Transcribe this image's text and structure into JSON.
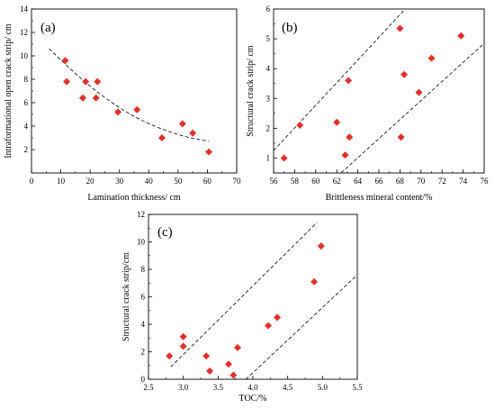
{
  "colors": {
    "marker": "#e0312b",
    "axis": "#000000",
    "trend": "#000000"
  },
  "chart_data": [
    {
      "panel": "(a)",
      "type": "scatter",
      "xlabel": "Lamination thickness/ cm",
      "ylabel": "Intraformational open crack  strip/ cm",
      "xlim": [
        0,
        70
      ],
      "ylim": [
        0,
        14
      ],
      "xticks": [
        0,
        10,
        20,
        30,
        40,
        50,
        60,
        70
      ],
      "yticks": [
        2,
        4,
        6,
        8,
        10,
        12,
        14
      ],
      "grid": false,
      "points": [
        {
          "x": 11.5,
          "y": 9.6
        },
        {
          "x": 12,
          "y": 7.8
        },
        {
          "x": 17.5,
          "y": 6.4
        },
        {
          "x": 18.5,
          "y": 7.8
        },
        {
          "x": 22,
          "y": 6.4
        },
        {
          "x": 22.5,
          "y": 7.8
        },
        {
          "x": 29.5,
          "y": 5.2
        },
        {
          "x": 36,
          "y": 5.4
        },
        {
          "x": 44.5,
          "y": 3.0
        },
        {
          "x": 51.5,
          "y": 4.2
        },
        {
          "x": 55,
          "y": 3.4
        },
        {
          "x": 60.5,
          "y": 1.8
        }
      ],
      "trend": {
        "kind": "quadratic",
        "points": [
          [
            6,
            10.6
          ],
          [
            20,
            7.3
          ],
          [
            35,
            4.7
          ],
          [
            50,
            3.2
          ],
          [
            60.5,
            2.7
          ]
        ]
      }
    },
    {
      "panel": "(b)",
      "type": "scatter",
      "xlabel": "Brittleness mineral content/%",
      "ylabel": "Structural crack strip/ cm",
      "xlim": [
        56,
        76
      ],
      "ylim": [
        0.5,
        6
      ],
      "xticks": [
        56,
        58,
        60,
        62,
        64,
        66,
        68,
        70,
        72,
        74,
        76
      ],
      "yticks": [
        1,
        2,
        3,
        4,
        5,
        6
      ],
      "grid": false,
      "points": [
        {
          "x": 57,
          "y": 1.0
        },
        {
          "x": 58.5,
          "y": 2.1
        },
        {
          "x": 62,
          "y": 2.2
        },
        {
          "x": 62.8,
          "y": 1.1
        },
        {
          "x": 63.1,
          "y": 3.6
        },
        {
          "x": 63.2,
          "y": 1.7
        },
        {
          "x": 68,
          "y": 5.35
        },
        {
          "x": 68.1,
          "y": 1.7
        },
        {
          "x": 68.4,
          "y": 3.8
        },
        {
          "x": 69.8,
          "y": 3.2
        },
        {
          "x": 71,
          "y": 4.35
        },
        {
          "x": 73.8,
          "y": 5.1
        }
      ],
      "envelope": [
        {
          "from": [
            56,
            1.25
          ],
          "to": [
            68.5,
            6.0
          ]
        },
        {
          "from": [
            62.4,
            0.5
          ],
          "to": [
            76,
            4.85
          ]
        }
      ]
    },
    {
      "panel": "(c)",
      "type": "scatter",
      "xlabel": "TOC/%",
      "ylabel": "Structural crack strip/cm",
      "xlim": [
        2.5,
        5.5
      ],
      "ylim": [
        0,
        12
      ],
      "xticks": [
        2.5,
        3.0,
        3.5,
        4.0,
        4.5,
        5.0,
        5.5
      ],
      "yticks": [
        0,
        2,
        4,
        6,
        8,
        10,
        12
      ],
      "grid": false,
      "points": [
        {
          "x": 2.8,
          "y": 1.7
        },
        {
          "x": 3.0,
          "y": 3.1
        },
        {
          "x": 3.0,
          "y": 2.4
        },
        {
          "x": 3.33,
          "y": 1.7
        },
        {
          "x": 3.38,
          "y": 0.6
        },
        {
          "x": 3.65,
          "y": 1.1
        },
        {
          "x": 3.72,
          "y": 0.3
        },
        {
          "x": 3.78,
          "y": 2.3
        },
        {
          "x": 4.22,
          "y": 3.9
        },
        {
          "x": 4.35,
          "y": 4.5
        },
        {
          "x": 4.88,
          "y": 7.1
        },
        {
          "x": 4.98,
          "y": 9.7
        }
      ],
      "envelope": [
        {
          "from": [
            2.82,
            0.9
          ],
          "to": [
            4.92,
            11.4
          ]
        },
        {
          "from": [
            3.9,
            0.0
          ],
          "to": [
            5.5,
            7.6
          ]
        }
      ]
    }
  ]
}
